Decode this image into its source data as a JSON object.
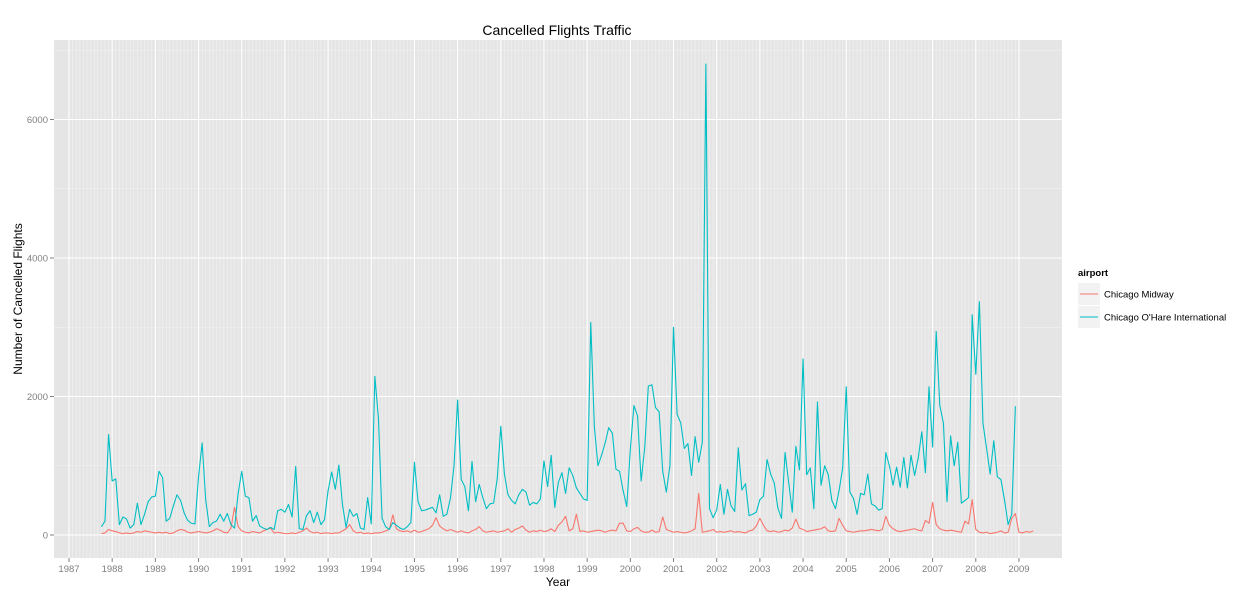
{
  "chart_data": {
    "type": "line",
    "title": "Cancelled Flights Traffic",
    "xlabel": "Year",
    "ylabel": "Number of Cancelled Flights",
    "xlim": [
      1987,
      2009
    ],
    "ylim": [
      0,
      7000
    ],
    "x_ticks": [
      "1987",
      "1988",
      "1989",
      "1990",
      "1991",
      "1992",
      "1993",
      "1994",
      "1995",
      "1996",
      "1997",
      "1998",
      "1999",
      "2000",
      "2001",
      "2002",
      "2003",
      "2004",
      "2005",
      "2006",
      "2007",
      "2008",
      "2009"
    ],
    "y_ticks": [
      0,
      2000,
      4000,
      6000
    ],
    "grid": true,
    "legend": {
      "title": "airport",
      "position": "right"
    },
    "series": [
      {
        "name": "Chicago Midway",
        "color": "#F8766D",
        "start": "1987-10",
        "values": [
          20,
          30,
          80,
          60,
          50,
          30,
          20,
          30,
          20,
          30,
          50,
          40,
          60,
          50,
          40,
          30,
          40,
          30,
          40,
          20,
          30,
          60,
          80,
          70,
          40,
          30,
          40,
          50,
          40,
          30,
          40,
          60,
          90,
          70,
          40,
          30,
          100,
          400,
          120,
          60,
          40,
          30,
          50,
          40,
          30,
          60,
          80,
          100,
          30,
          40,
          30,
          20,
          20,
          30,
          20,
          40,
          60,
          100,
          50,
          30,
          40,
          20,
          30,
          30,
          20,
          30,
          30,
          60,
          90,
          150,
          60,
          30,
          40,
          20,
          30,
          20,
          30,
          30,
          40,
          60,
          80,
          290,
          90,
          60,
          50,
          60,
          40,
          70,
          40,
          50,
          70,
          90,
          140,
          250,
          130,
          90,
          60,
          80,
          60,
          40,
          60,
          40,
          30,
          60,
          80,
          120,
          60,
          40,
          50,
          60,
          40,
          50,
          60,
          90,
          40,
          80,
          100,
          130,
          70,
          40,
          60,
          50,
          70,
          50,
          60,
          90,
          50,
          140,
          190,
          270,
          60,
          90,
          300,
          50,
          60,
          40,
          50,
          60,
          70,
          60,
          40,
          60,
          70,
          60,
          170,
          170,
          60,
          50,
          90,
          110,
          60,
          40,
          40,
          70,
          40,
          50,
          260,
          80,
          60,
          40,
          50,
          40,
          30,
          40,
          60,
          90,
          600,
          40,
          50,
          60,
          80,
          40,
          50,
          40,
          50,
          60,
          40,
          50,
          40,
          30,
          60,
          70,
          130,
          240,
          140,
          60,
          50,
          60,
          40,
          50,
          70,
          60,
          100,
          230,
          100,
          80,
          50,
          60,
          70,
          80,
          90,
          120,
          60,
          50,
          60,
          240,
          140,
          60,
          50,
          40,
          50,
          60,
          60,
          70,
          80,
          70,
          60,
          80,
          270,
          140,
          90,
          60,
          50,
          60,
          70,
          80,
          90,
          70,
          60,
          210,
          170,
          470,
          150,
          90,
          70,
          60,
          70,
          60,
          50,
          40,
          200,
          160,
          510,
          80,
          40,
          30,
          40,
          20,
          30,
          40,
          60,
          30,
          40,
          240,
          310,
          40,
          30,
          50,
          40,
          60
        ]
      },
      {
        "name": "Chicago O'Hare International",
        "color": "#00BFC4",
        "start": "1987-10",
        "values": [
          120,
          200,
          1450,
          780,
          810,
          150,
          260,
          230,
          100,
          150,
          460,
          150,
          300,
          480,
          550,
          560,
          920,
          830,
          200,
          240,
          420,
          580,
          500,
          320,
          210,
          170,
          160,
          840,
          1330,
          500,
          120,
          180,
          200,
          300,
          200,
          310,
          150,
          100,
          600,
          920,
          560,
          540,
          200,
          280,
          130,
          100,
          80,
          110,
          80,
          350,
          370,
          330,
          440,
          260,
          990,
          90,
          80,
          280,
          350,
          180,
          330,
          150,
          220,
          640,
          910,
          660,
          1010,
          440,
          110,
          370,
          270,
          310,
          100,
          80,
          540,
          160,
          2290,
          1680,
          240,
          120,
          80,
          180,
          140,
          100,
          80,
          120,
          180,
          1050,
          480,
          350,
          360,
          380,
          400,
          320,
          580,
          270,
          300,
          530,
          1000,
          1950,
          800,
          700,
          350,
          1060,
          480,
          730,
          540,
          380,
          450,
          460,
          810,
          1570,
          880,
          580,
          500,
          450,
          580,
          660,
          620,
          430,
          470,
          450,
          520,
          1070,
          700,
          1150,
          400,
          760,
          900,
          600,
          970,
          860,
          680,
          600,
          520,
          500,
          3070,
          1560,
          1000,
          1150,
          1330,
          1550,
          1470,
          950,
          920,
          640,
          410,
          1240,
          1870,
          1720,
          780,
          1260,
          2150,
          2170,
          1840,
          1780,
          920,
          620,
          1000,
          3000,
          1740,
          1620,
          1250,
          1320,
          860,
          1420,
          1050,
          1340,
          6800,
          380,
          250,
          360,
          730,
          300,
          660,
          420,
          340,
          1260,
          650,
          740,
          280,
          300,
          330,
          510,
          560,
          1090,
          880,
          750,
          390,
          240,
          1190,
          760,
          330,
          1280,
          940,
          2540,
          870,
          970,
          380,
          1920,
          720,
          1000,
          870,
          500,
          380,
          640,
          960,
          2140,
          620,
          530,
          300,
          600,
          580,
          880,
          450,
          420,
          360,
          380,
          1190,
          1000,
          720,
          980,
          690,
          1120,
          680,
          1150,
          860,
          1110,
          1490,
          900,
          2140,
          1270,
          2940,
          1870,
          1620,
          480,
          1430,
          1000,
          1340,
          460,
          500,
          540,
          3180,
          2320,
          3370,
          1610,
          1250,
          880,
          1360,
          840,
          800,
          500,
          150,
          300,
          1860
        ]
      }
    ]
  }
}
